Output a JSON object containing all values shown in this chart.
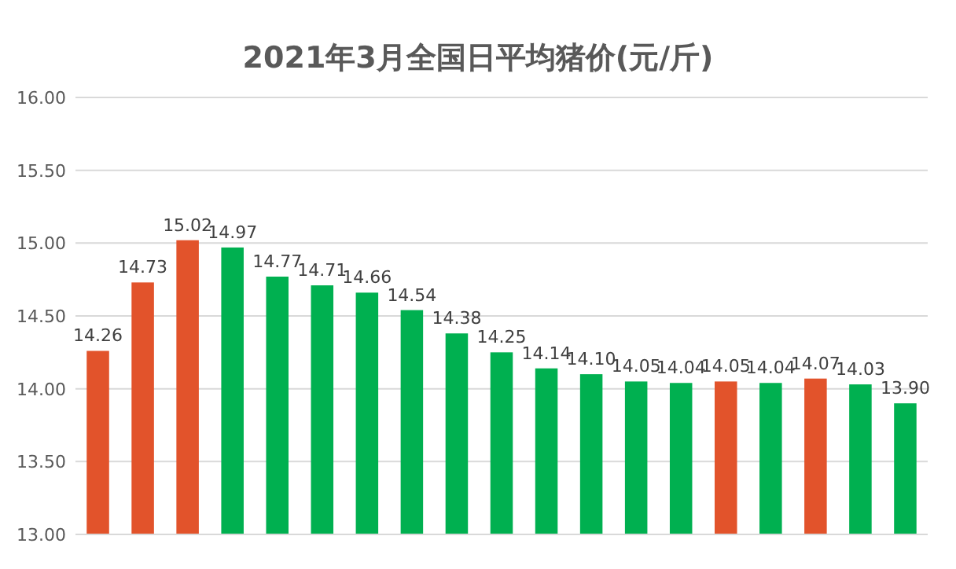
{
  "chart_data": {
    "type": "bar",
    "title": "2021年3月全国日平均猪价(元/斤)",
    "categories": [
      null,
      null,
      null,
      null,
      null,
      null,
      null,
      null,
      null,
      null,
      null,
      null,
      null,
      null,
      null,
      null,
      null,
      null,
      null
    ],
    "values": [
      14.26,
      14.73,
      15.02,
      14.97,
      14.77,
      14.71,
      14.66,
      14.54,
      14.38,
      14.25,
      14.14,
      14.1,
      14.05,
      14.04,
      14.05,
      14.04,
      14.07,
      14.03,
      13.9
    ],
    "value_labels": [
      "14.26",
      "14.73",
      "15.02",
      "14.97",
      "14.77",
      "14.71",
      "14.66",
      "14.54",
      "14.38",
      "14.25",
      "14.14",
      "14.10",
      "14.05",
      "14.04",
      "14.05",
      "14.04",
      "14.07",
      "14.03",
      "13.90"
    ],
    "colors": [
      "#e2532b",
      "#e2532b",
      "#e2532b",
      "#00b050",
      "#00b050",
      "#00b050",
      "#00b050",
      "#00b050",
      "#00b050",
      "#00b050",
      "#00b050",
      "#00b050",
      "#00b050",
      "#00b050",
      "#e2532b",
      "#00b050",
      "#e2532b",
      "#00b050",
      "#00b050"
    ],
    "ylim": [
      13,
      16
    ],
    "yticks": [
      {
        "value": 13,
        "label": "13.00"
      },
      {
        "value": 13.5,
        "label": "13.50"
      },
      {
        "value": 14,
        "label": "14.00"
      },
      {
        "value": 14.5,
        "label": "14.50"
      },
      {
        "value": 15,
        "label": "15.00"
      },
      {
        "value": 15.5,
        "label": "15.50"
      },
      {
        "value": 16,
        "label": "16.00"
      }
    ],
    "grid": "y"
  }
}
